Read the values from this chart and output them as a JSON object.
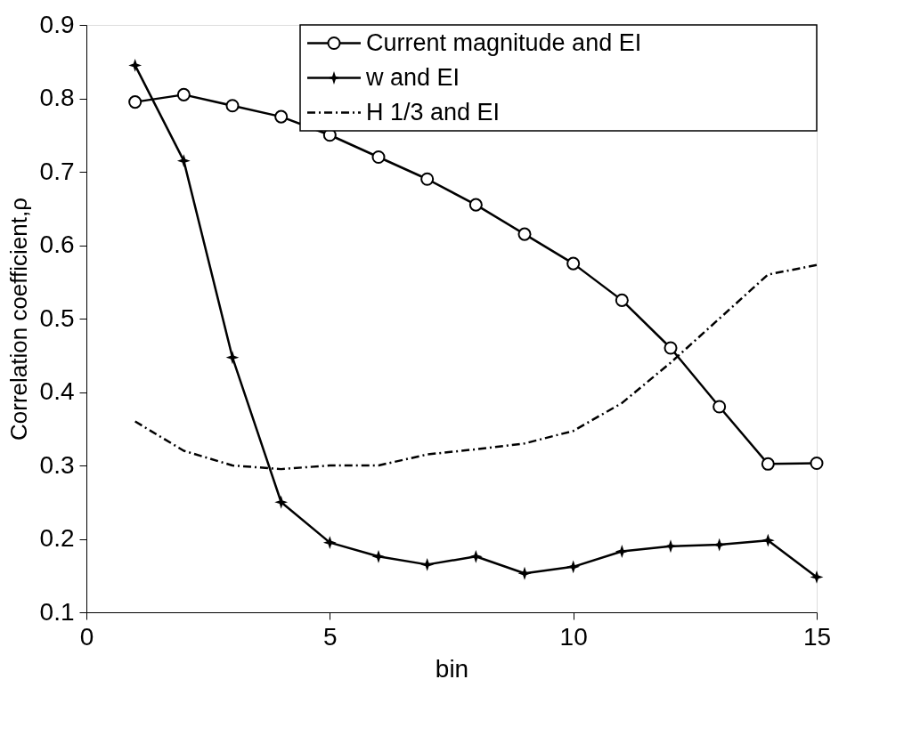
{
  "chart_data": {
    "type": "line",
    "xlabel": "bin",
    "ylabel": "Correlation coefficient,ρ",
    "x": [
      1,
      2,
      3,
      4,
      5,
      6,
      7,
      8,
      9,
      10,
      11,
      12,
      13,
      14,
      15
    ],
    "series": [
      {
        "name": "Current magnitude and EI",
        "color": "#000000",
        "marker": "circle",
        "line_style": "solid",
        "values": [
          0.795,
          0.805,
          0.79,
          0.775,
          0.75,
          0.72,
          0.69,
          0.655,
          0.615,
          0.575,
          0.525,
          0.46,
          0.38,
          0.302,
          0.303
        ]
      },
      {
        "name": "w and EI",
        "color": "#000000",
        "marker": "star",
        "line_style": "solid",
        "values": [
          0.845,
          0.715,
          0.447,
          0.25,
          0.195,
          0.176,
          0.165,
          0.176,
          0.153,
          0.162,
          0.183,
          0.19,
          0.192,
          0.198,
          0.148
        ]
      },
      {
        "name": "H 1/3 and EI",
        "color": "#000000",
        "marker": "none",
        "line_style": "dashed",
        "values": [
          0.36,
          0.32,
          0.3,
          0.295,
          0.3,
          0.3,
          0.315,
          0.322,
          0.33,
          0.347,
          0.385,
          0.44,
          0.5,
          0.56,
          0.573
        ]
      }
    ],
    "xlim": [
      0,
      15
    ],
    "ylim": [
      0.1,
      0.9
    ],
    "xticks": [
      0,
      5,
      10,
      15
    ],
    "yticks": [
      0.1,
      0.2,
      0.3,
      0.4,
      0.5,
      0.6,
      0.7,
      0.8,
      0.9
    ],
    "legend": "top right",
    "grid": false
  }
}
